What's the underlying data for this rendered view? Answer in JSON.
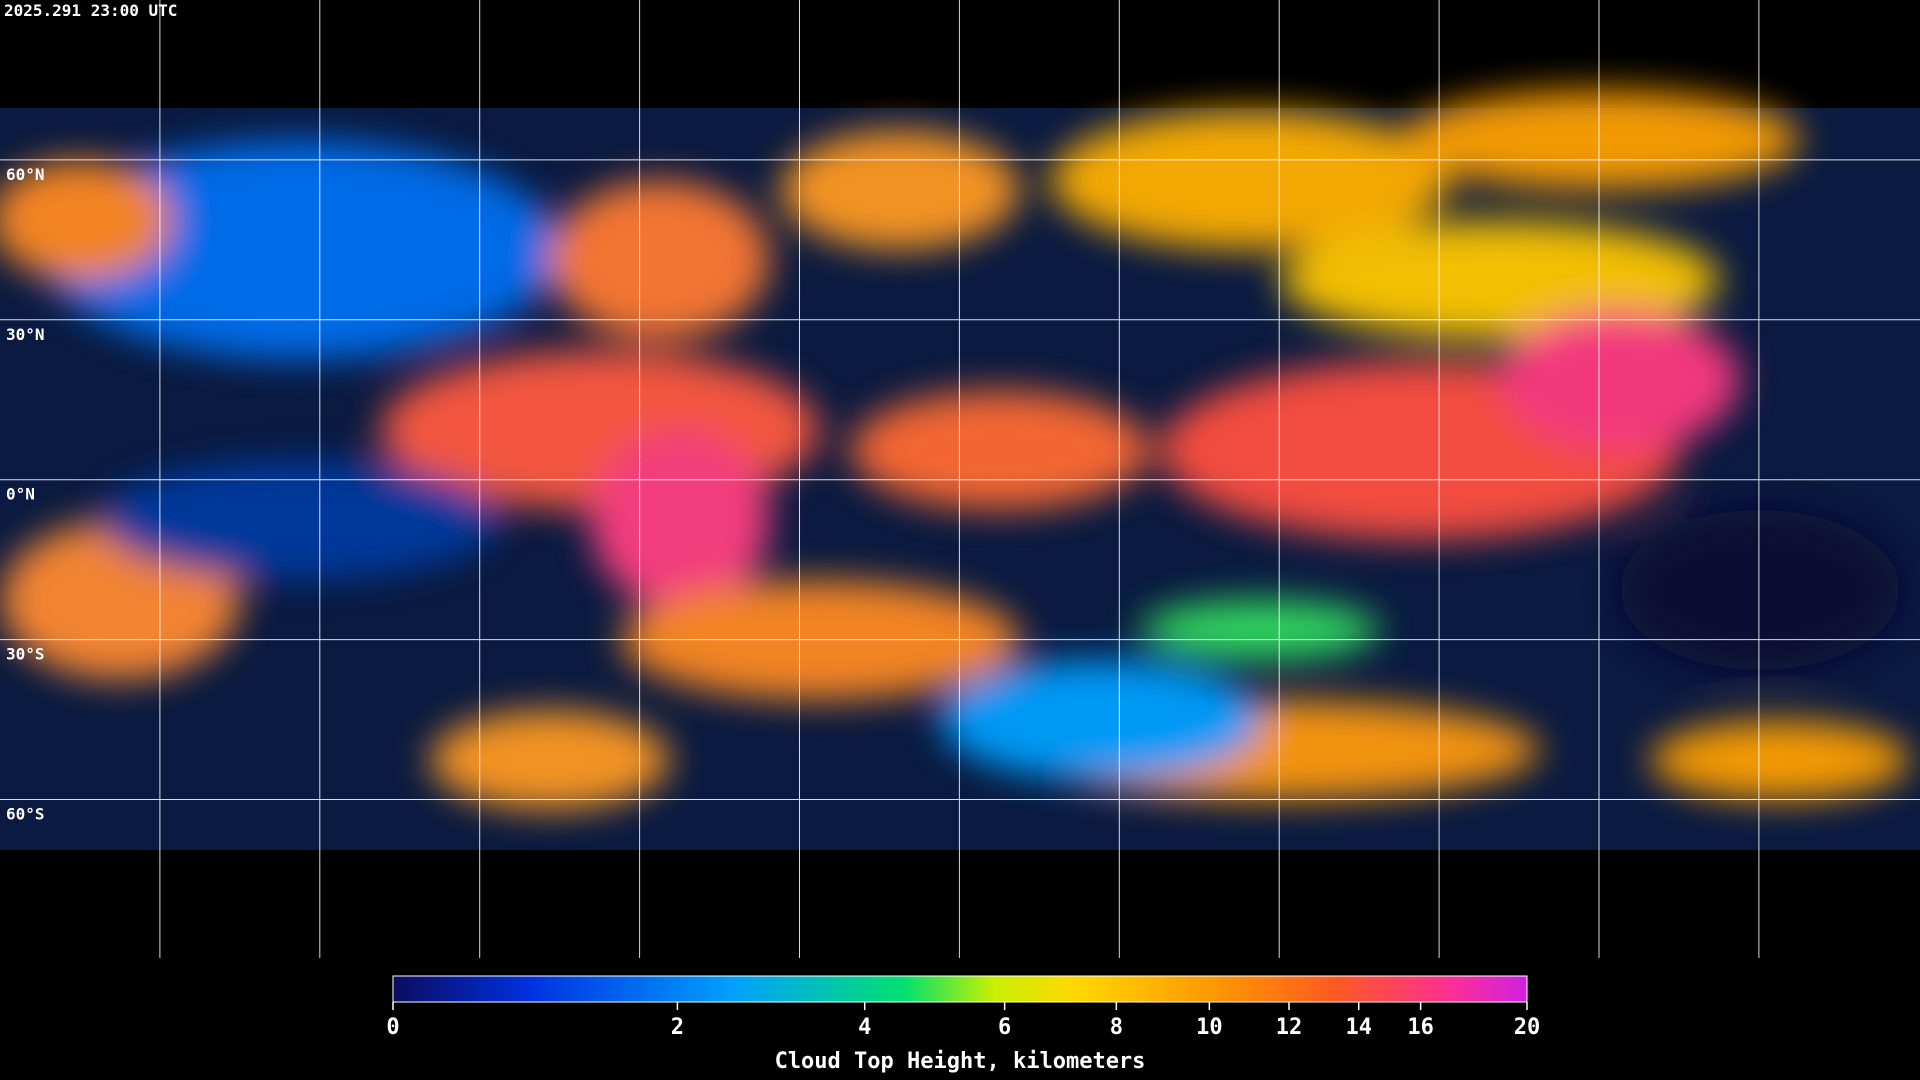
{
  "header": {
    "timestamp": "2025.291 23:00 UTC"
  },
  "map": {
    "latitude_labels": [
      "60°N",
      "30°N",
      "0°N",
      "30°S",
      "60°S"
    ]
  },
  "colorbar": {
    "title": "Cloud Top Height, kilometers",
    "lim": [
      0,
      20
    ],
    "ticks": [
      0,
      2,
      4,
      6,
      8,
      10,
      12,
      14,
      16,
      20
    ]
  }
}
